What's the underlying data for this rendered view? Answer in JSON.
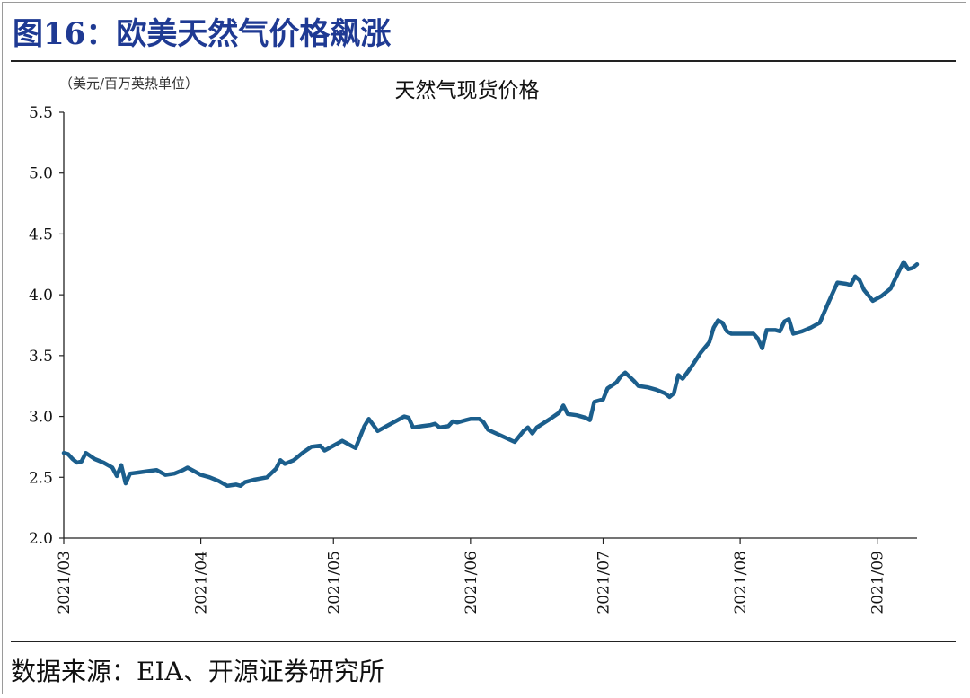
{
  "figure": {
    "title": "图16：欧美天然气价格飙涨",
    "source": "数据来源：EIA、开源证券研究所"
  },
  "colors": {
    "title": "#1f3a93",
    "line": "#1b5e8c",
    "axis": "#222222",
    "text": "#111111"
  },
  "chart_data": {
    "type": "line",
    "title": "天然气现货价格",
    "unit_label": "（美元/百万英热单位）",
    "xlabel": "",
    "ylabel": "",
    "ylim": [
      2.0,
      5.5
    ],
    "yticks": [
      "2.0",
      "2.5",
      "3.0",
      "3.5",
      "4.0",
      "4.5",
      "5.0",
      "5.5"
    ],
    "xlim": [
      "2021-03-01",
      "2021-09-10"
    ],
    "xticks": [
      {
        "date": "2021-03-01",
        "label": "2021/03"
      },
      {
        "date": "2021-04-01",
        "label": "2021/04"
      },
      {
        "date": "2021-05-01",
        "label": "2021/05"
      },
      {
        "date": "2021-06-01",
        "label": "2021/06"
      },
      {
        "date": "2021-07-01",
        "label": "2021/07"
      },
      {
        "date": "2021-08-01",
        "label": "2021/08"
      },
      {
        "date": "2021-09-01",
        "label": "2021/09"
      }
    ],
    "grid": false,
    "legend": "none",
    "series": [
      {
        "name": "",
        "points": [
          [
            "2021-03-01",
            2.7
          ],
          [
            "2021-03-02",
            2.69
          ],
          [
            "2021-03-03",
            2.65
          ],
          [
            "2021-03-04",
            2.62
          ],
          [
            "2021-03-05",
            2.63
          ],
          [
            "2021-03-06",
            2.7
          ],
          [
            "2021-03-08",
            2.65
          ],
          [
            "2021-03-10",
            2.62
          ],
          [
            "2021-03-12",
            2.58
          ],
          [
            "2021-03-13",
            2.51
          ],
          [
            "2021-03-14",
            2.6
          ],
          [
            "2021-03-15",
            2.45
          ],
          [
            "2021-03-16",
            2.53
          ],
          [
            "2021-03-18",
            2.54
          ],
          [
            "2021-03-20",
            2.55
          ],
          [
            "2021-03-22",
            2.56
          ],
          [
            "2021-03-24",
            2.52
          ],
          [
            "2021-03-26",
            2.53
          ],
          [
            "2021-03-28",
            2.56
          ],
          [
            "2021-03-29",
            2.58
          ],
          [
            "2021-03-31",
            2.54
          ],
          [
            "2021-04-01",
            2.52
          ],
          [
            "2021-04-03",
            2.5
          ],
          [
            "2021-04-05",
            2.47
          ],
          [
            "2021-04-07",
            2.43
          ],
          [
            "2021-04-09",
            2.44
          ],
          [
            "2021-04-10",
            2.43
          ],
          [
            "2021-04-11",
            2.46
          ],
          [
            "2021-04-13",
            2.48
          ],
          [
            "2021-04-16",
            2.5
          ],
          [
            "2021-04-18",
            2.57
          ],
          [
            "2021-04-19",
            2.64
          ],
          [
            "2021-04-20",
            2.61
          ],
          [
            "2021-04-22",
            2.64
          ],
          [
            "2021-04-24",
            2.7
          ],
          [
            "2021-04-26",
            2.75
          ],
          [
            "2021-04-28",
            2.76
          ],
          [
            "2021-04-29",
            2.72
          ],
          [
            "2021-05-01",
            2.76
          ],
          [
            "2021-05-03",
            2.8
          ],
          [
            "2021-05-05",
            2.76
          ],
          [
            "2021-05-06",
            2.74
          ],
          [
            "2021-05-08",
            2.92
          ],
          [
            "2021-05-09",
            2.98
          ],
          [
            "2021-05-10",
            2.93
          ],
          [
            "2021-05-11",
            2.88
          ],
          [
            "2021-05-13",
            2.92
          ],
          [
            "2021-05-15",
            2.96
          ],
          [
            "2021-05-17",
            3.0
          ],
          [
            "2021-05-18",
            2.99
          ],
          [
            "2021-05-19",
            2.91
          ],
          [
            "2021-05-21",
            2.92
          ],
          [
            "2021-05-23",
            2.93
          ],
          [
            "2021-05-24",
            2.94
          ],
          [
            "2021-05-25",
            2.91
          ],
          [
            "2021-05-27",
            2.92
          ],
          [
            "2021-05-28",
            2.96
          ],
          [
            "2021-05-29",
            2.95
          ],
          [
            "2021-05-31",
            2.97
          ],
          [
            "2021-06-01",
            2.98
          ],
          [
            "2021-06-03",
            2.98
          ],
          [
            "2021-06-04",
            2.95
          ],
          [
            "2021-06-05",
            2.89
          ],
          [
            "2021-06-08",
            2.84
          ],
          [
            "2021-06-11",
            2.79
          ],
          [
            "2021-06-13",
            2.88
          ],
          [
            "2021-06-14",
            2.91
          ],
          [
            "2021-06-15",
            2.86
          ],
          [
            "2021-06-16",
            2.91
          ],
          [
            "2021-06-19",
            2.98
          ],
          [
            "2021-06-21",
            3.03
          ],
          [
            "2021-06-22",
            3.09
          ],
          [
            "2021-06-23",
            3.02
          ],
          [
            "2021-06-25",
            3.01
          ],
          [
            "2021-06-27",
            2.99
          ],
          [
            "2021-06-28",
            2.97
          ],
          [
            "2021-06-29",
            3.12
          ],
          [
            "2021-07-01",
            3.14
          ],
          [
            "2021-07-02",
            3.23
          ],
          [
            "2021-07-04",
            3.28
          ],
          [
            "2021-07-05",
            3.33
          ],
          [
            "2021-07-06",
            3.36
          ],
          [
            "2021-07-08",
            3.29
          ],
          [
            "2021-07-09",
            3.25
          ],
          [
            "2021-07-11",
            3.24
          ],
          [
            "2021-07-13",
            3.22
          ],
          [
            "2021-07-15",
            3.19
          ],
          [
            "2021-07-16",
            3.16
          ],
          [
            "2021-07-17",
            3.19
          ],
          [
            "2021-07-18",
            3.34
          ],
          [
            "2021-07-19",
            3.31
          ],
          [
            "2021-07-21",
            3.41
          ],
          [
            "2021-07-23",
            3.52
          ],
          [
            "2021-07-25",
            3.61
          ],
          [
            "2021-07-26",
            3.73
          ],
          [
            "2021-07-27",
            3.79
          ],
          [
            "2021-07-28",
            3.77
          ],
          [
            "2021-07-29",
            3.7
          ],
          [
            "2021-07-30",
            3.68
          ],
          [
            "2021-08-02",
            3.68
          ],
          [
            "2021-08-04",
            3.68
          ],
          [
            "2021-08-05",
            3.64
          ],
          [
            "2021-08-06",
            3.56
          ],
          [
            "2021-08-07",
            3.71
          ],
          [
            "2021-08-09",
            3.71
          ],
          [
            "2021-08-10",
            3.7
          ],
          [
            "2021-08-11",
            3.78
          ],
          [
            "2021-08-12",
            3.8
          ],
          [
            "2021-08-13",
            3.68
          ],
          [
            "2021-08-15",
            3.7
          ],
          [
            "2021-08-17",
            3.73
          ],
          [
            "2021-08-19",
            3.77
          ],
          [
            "2021-08-21",
            3.94
          ],
          [
            "2021-08-22",
            4.02
          ],
          [
            "2021-08-23",
            4.1
          ],
          [
            "2021-08-25",
            4.09
          ],
          [
            "2021-08-26",
            4.08
          ],
          [
            "2021-08-27",
            4.15
          ],
          [
            "2021-08-28",
            4.12
          ],
          [
            "2021-08-29",
            4.04
          ],
          [
            "2021-08-31",
            3.95
          ],
          [
            "2021-09-02",
            3.99
          ],
          [
            "2021-09-04",
            4.05
          ],
          [
            "2021-09-06",
            4.2
          ],
          [
            "2021-09-07",
            4.27
          ],
          [
            "2021-09-08",
            4.21
          ],
          [
            "2021-09-09",
            4.22
          ],
          [
            "2021-09-10",
            4.25
          ]
        ]
      }
    ]
  }
}
